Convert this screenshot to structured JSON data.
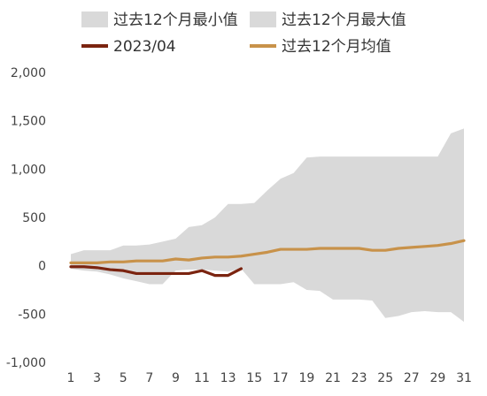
{
  "chart_data": {
    "type": "area",
    "title": "",
    "xlabel": "",
    "ylabel": "",
    "ylim": [
      -1000,
      2000
    ],
    "yticks": [
      2000,
      1500,
      1000,
      500,
      0,
      -500,
      -1000
    ],
    "ytick_labels": [
      "2,000",
      "1,500",
      "1,000",
      "500",
      "0",
      "-500",
      "-1,000"
    ],
    "x": [
      1,
      2,
      3,
      4,
      5,
      6,
      7,
      8,
      9,
      10,
      11,
      12,
      13,
      14,
      15,
      16,
      17,
      18,
      19,
      20,
      21,
      22,
      23,
      24,
      25,
      26,
      27,
      28,
      29,
      30,
      31
    ],
    "xtick_labels": [
      "1",
      "3",
      "5",
      "7",
      "9",
      "11",
      "13",
      "15",
      "17",
      "19",
      "21",
      "23",
      "25",
      "27",
      "29",
      "31"
    ],
    "xticks": [
      1,
      3,
      5,
      7,
      9,
      11,
      13,
      15,
      17,
      19,
      21,
      23,
      25,
      27,
      29,
      31
    ],
    "grid": false,
    "legend_position": "top",
    "series": [
      {
        "name": "过去12个月最小值",
        "kind": "band-lower",
        "color": "#d9d9d9",
        "values": [
          -30,
          -50,
          -60,
          -90,
          -130,
          -160,
          -190,
          -190,
          -50,
          -40,
          -40,
          -50,
          -60,
          -30,
          -190,
          -190,
          -190,
          -170,
          -250,
          -260,
          -350,
          -350,
          -350,
          -360,
          -540,
          -520,
          -480,
          -470,
          -480,
          -480,
          -580
        ]
      },
      {
        "name": "过去12个月最大值",
        "kind": "band-upper",
        "color": "#d9d9d9",
        "values": [
          120,
          160,
          160,
          160,
          210,
          210,
          220,
          250,
          280,
          400,
          420,
          500,
          640,
          640,
          650,
          780,
          900,
          960,
          1120,
          1130,
          1130,
          1130,
          1130,
          1130,
          1130,
          1130,
          1130,
          1130,
          1130,
          1370,
          1420
        ]
      },
      {
        "name": "2023/04",
        "kind": "line",
        "color": "#7b2410",
        "values": [
          -10,
          -10,
          -20,
          -40,
          -50,
          -80,
          -80,
          -80,
          -80,
          -80,
          -50,
          -100,
          -100,
          -30,
          null,
          null,
          null,
          null,
          null,
          null,
          null,
          null,
          null,
          null,
          null,
          null,
          null,
          null,
          null,
          null,
          null
        ]
      },
      {
        "name": "过去12个月均值",
        "kind": "line",
        "color": "#c8924a",
        "values": [
          30,
          30,
          30,
          40,
          40,
          50,
          50,
          50,
          70,
          60,
          80,
          90,
          90,
          100,
          120,
          140,
          170,
          170,
          170,
          180,
          180,
          180,
          180,
          160,
          160,
          180,
          190,
          200,
          210,
          230,
          260
        ]
      }
    ]
  }
}
